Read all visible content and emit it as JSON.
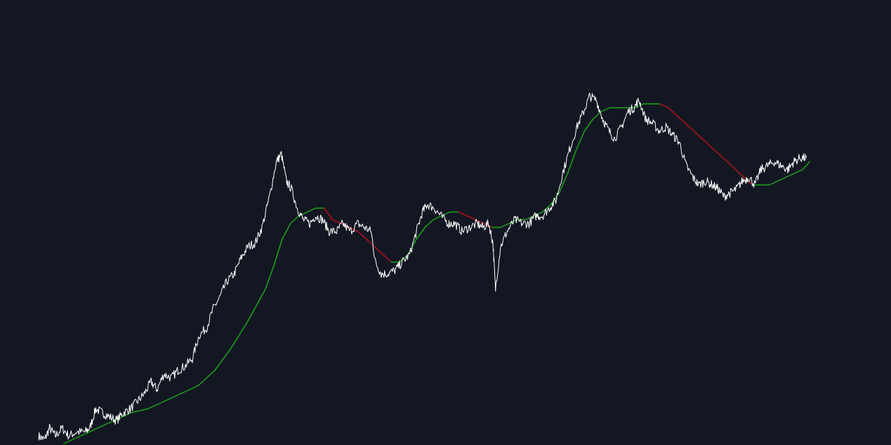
{
  "theme": {
    "background": "#131722",
    "price_color": "#ffffff",
    "ma_up_color": "#1aa31a",
    "ma_down_color": "#b5121b"
  },
  "chart_data": {
    "type": "line",
    "title": "",
    "xlabel": "",
    "ylabel": "",
    "grid": false,
    "legend": "none",
    "xlim": [
      0,
      100
    ],
    "ylim": [
      0,
      100
    ],
    "series": [
      {
        "role": "price",
        "color": "#ffffff",
        "points": [
          [
            0.0,
            2
          ],
          [
            0.7,
            1
          ],
          [
            1.3,
            4
          ],
          [
            2.0,
            2
          ],
          [
            2.8,
            4
          ],
          [
            3.6,
            2
          ],
          [
            4.5,
            3
          ],
          [
            5.5,
            3
          ],
          [
            6.1,
            4
          ],
          [
            6.8,
            9
          ],
          [
            7.6,
            8
          ],
          [
            8.4,
            7
          ],
          [
            9.3,
            6
          ],
          [
            10.1,
            8
          ],
          [
            10.9,
            9
          ],
          [
            11.8,
            11
          ],
          [
            12.6,
            13
          ],
          [
            13.4,
            16
          ],
          [
            14.1,
            14
          ],
          [
            14.9,
            18
          ],
          [
            15.8,
            17
          ],
          [
            16.6,
            19
          ],
          [
            17.4,
            20
          ],
          [
            18.3,
            22
          ],
          [
            19.1,
            28
          ],
          [
            20.0,
            30
          ],
          [
            20.8,
            35
          ],
          [
            21.6,
            38
          ],
          [
            22.4,
            42
          ],
          [
            23.3,
            44
          ],
          [
            24.1,
            48
          ],
          [
            24.9,
            51
          ],
          [
            25.8,
            52
          ],
          [
            26.6,
            56
          ],
          [
            27.5,
            64
          ],
          [
            28.3,
            73
          ],
          [
            28.9,
            75
          ],
          [
            29.5,
            68
          ],
          [
            30.1,
            66
          ],
          [
            30.8,
            61
          ],
          [
            31.5,
            58
          ],
          [
            32.3,
            57
          ],
          [
            33.0,
            59
          ],
          [
            33.8,
            58
          ],
          [
            34.6,
            55
          ],
          [
            35.5,
            55
          ],
          [
            36.2,
            57
          ],
          [
            37.1,
            55
          ],
          [
            38.0,
            57
          ],
          [
            38.8,
            56
          ],
          [
            39.6,
            55
          ],
          [
            40.1,
            47
          ],
          [
            40.8,
            44
          ],
          [
            41.6,
            44
          ],
          [
            42.5,
            45
          ],
          [
            43.3,
            47
          ],
          [
            44.2,
            49
          ],
          [
            45.0,
            55
          ],
          [
            45.7,
            60
          ],
          [
            46.3,
            62
          ],
          [
            47.1,
            61
          ],
          [
            47.9,
            59
          ],
          [
            48.8,
            57
          ],
          [
            49.6,
            57
          ],
          [
            50.4,
            55
          ],
          [
            51.3,
            56
          ],
          [
            52.2,
            57
          ],
          [
            52.9,
            56
          ],
          [
            53.6,
            57
          ],
          [
            54.1,
            52
          ],
          [
            54.4,
            40
          ],
          [
            55.0,
            51
          ],
          [
            55.8,
            55
          ],
          [
            56.7,
            58
          ],
          [
            57.6,
            57
          ],
          [
            58.4,
            57
          ],
          [
            59.2,
            59
          ],
          [
            60.0,
            59
          ],
          [
            60.8,
            61
          ],
          [
            61.6,
            63
          ],
          [
            62.4,
            70
          ],
          [
            63.2,
            76
          ],
          [
            64.1,
            82
          ],
          [
            64.9,
            86
          ],
          [
            65.6,
            90
          ],
          [
            66.4,
            89
          ],
          [
            67.2,
            84
          ],
          [
            67.9,
            81
          ],
          [
            68.6,
            79
          ],
          [
            69.4,
            82
          ],
          [
            70.2,
            86
          ],
          [
            70.9,
            87
          ],
          [
            71.5,
            89
          ],
          [
            72.3,
            84
          ],
          [
            73.1,
            83
          ],
          [
            73.9,
            81
          ],
          [
            74.7,
            82
          ],
          [
            75.5,
            80
          ],
          [
            76.3,
            78
          ],
          [
            77.1,
            72
          ],
          [
            77.9,
            69
          ],
          [
            78.6,
            67
          ],
          [
            79.4,
            68
          ],
          [
            80.2,
            67
          ],
          [
            80.9,
            66
          ],
          [
            81.6,
            64
          ],
          [
            82.4,
            65
          ],
          [
            83.1,
            66
          ],
          [
            83.8,
            68
          ],
          [
            84.6,
            69
          ],
          [
            85.3,
            67
          ],
          [
            86.0,
            71
          ],
          [
            86.8,
            72
          ],
          [
            87.6,
            73
          ],
          [
            88.4,
            72
          ],
          [
            89.2,
            71
          ],
          [
            89.9,
            73
          ],
          [
            90.7,
            74
          ],
          [
            91.4,
            74
          ]
        ]
      },
      {
        "role": "moving-average",
        "color_rising": "#1aa31a",
        "color_falling": "#b5121b",
        "points": [
          [
            3.0,
            0
          ],
          [
            5.0,
            2
          ],
          [
            7.0,
            4
          ],
          [
            9.0,
            6
          ],
          [
            11.0,
            8
          ],
          [
            13.0,
            9
          ],
          [
            15.0,
            11
          ],
          [
            17.0,
            13
          ],
          [
            19.0,
            15
          ],
          [
            21.0,
            19
          ],
          [
            23.0,
            25
          ],
          [
            25.0,
            32
          ],
          [
            27.0,
            40
          ],
          [
            28.0,
            46
          ],
          [
            29.0,
            53
          ],
          [
            30.0,
            57
          ],
          [
            31.0,
            59
          ],
          [
            32.0,
            60
          ],
          [
            33.0,
            61
          ],
          [
            34.0,
            61
          ],
          [
            35.0,
            58
          ],
          [
            36.0,
            57
          ],
          [
            37.0,
            56
          ],
          [
            38.0,
            55
          ],
          [
            39.0,
            53
          ],
          [
            40.0,
            51
          ],
          [
            41.0,
            49
          ],
          [
            42.0,
            47
          ],
          [
            43.0,
            47
          ],
          [
            44.0,
            49
          ],
          [
            45.0,
            53
          ],
          [
            46.0,
            56
          ],
          [
            47.0,
            58
          ],
          [
            48.0,
            59
          ],
          [
            49.0,
            60
          ],
          [
            50.0,
            60
          ],
          [
            51.0,
            59
          ],
          [
            52.0,
            58
          ],
          [
            53.0,
            57
          ],
          [
            54.0,
            56
          ],
          [
            55.0,
            56
          ],
          [
            56.0,
            57
          ],
          [
            57.0,
            58
          ],
          [
            58.0,
            58
          ],
          [
            59.0,
            59
          ],
          [
            60.0,
            60
          ],
          [
            61.0,
            62
          ],
          [
            62.0,
            65
          ],
          [
            63.0,
            70
          ],
          [
            64.0,
            76
          ],
          [
            65.0,
            81
          ],
          [
            66.0,
            84
          ],
          [
            67.0,
            86
          ],
          [
            68.0,
            87
          ],
          [
            69.0,
            87
          ],
          [
            70.0,
            87
          ],
          [
            71.0,
            87
          ],
          [
            72.0,
            88
          ],
          [
            73.0,
            88
          ],
          [
            74.0,
            88
          ],
          [
            75.0,
            87
          ],
          [
            76.0,
            85
          ],
          [
            77.0,
            83
          ],
          [
            78.0,
            81
          ],
          [
            79.0,
            79
          ],
          [
            80.0,
            77
          ],
          [
            81.0,
            75
          ],
          [
            82.0,
            73
          ],
          [
            83.0,
            71
          ],
          [
            84.0,
            69
          ],
          [
            85.0,
            67
          ],
          [
            86.0,
            67
          ],
          [
            87.0,
            67
          ],
          [
            88.0,
            68
          ],
          [
            89.0,
            69
          ],
          [
            90.0,
            70
          ],
          [
            91.0,
            71
          ],
          [
            91.8,
            73
          ]
        ]
      }
    ]
  }
}
